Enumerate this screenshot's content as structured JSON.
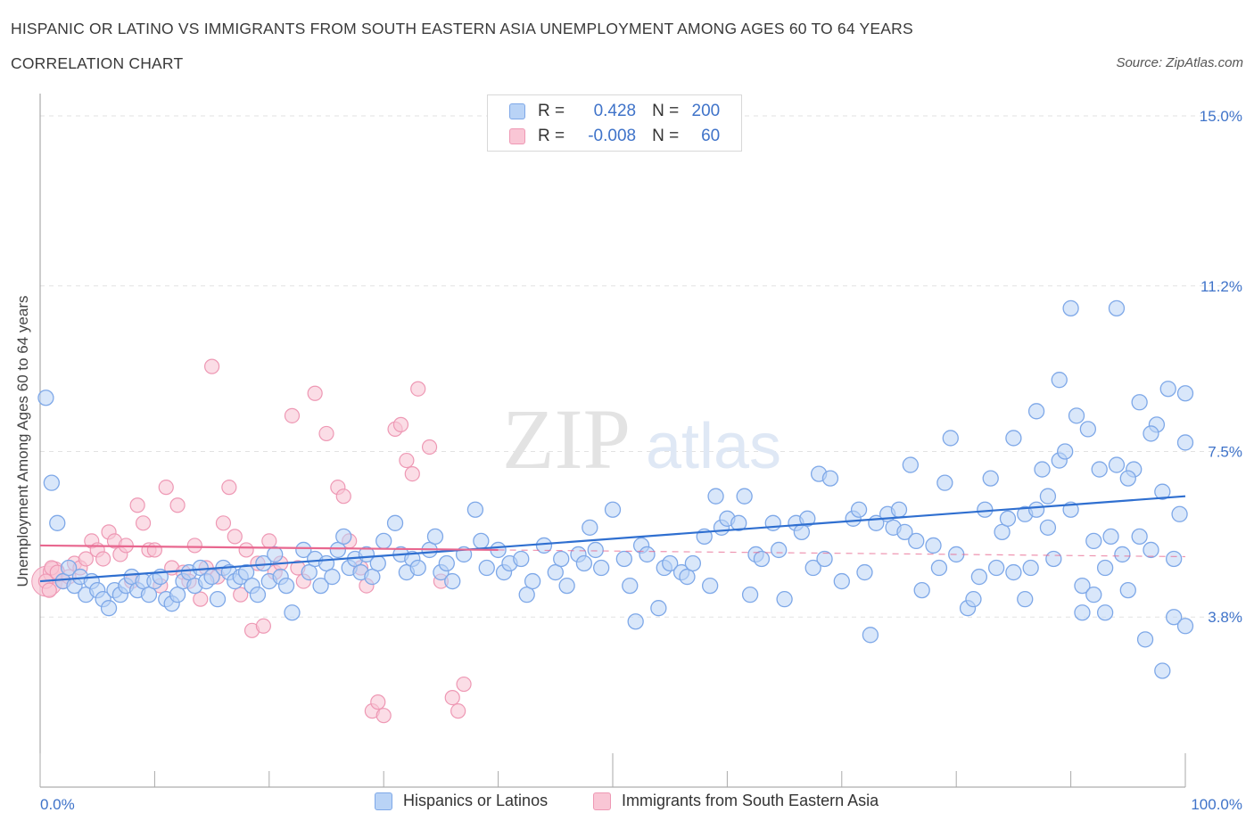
{
  "title": "HISPANIC OR LATINO VS IMMIGRANTS FROM SOUTH EASTERN ASIA UNEMPLOYMENT AMONG AGES 60 TO 64 YEARS",
  "subtitle": "CORRELATION CHART",
  "source": "Source: ZipAtlas.com",
  "legend": {
    "rows": [
      {
        "r_label": "R =",
        "r_value": "0.428",
        "n_label": "N =",
        "n_value": "200"
      },
      {
        "r_label": "R =",
        "r_value": "-0.008",
        "n_label": "N =",
        "n_value": "60"
      }
    ]
  },
  "bottom_legend": {
    "series1": "Hispanics or Latinos",
    "series2": "Immigrants from South Eastern Asia"
  },
  "colors": {
    "blue_fill": "#b9d3f6",
    "blue_stroke": "#7ea8e8",
    "blue_line": "#2f6fd0",
    "pink_fill": "#f9c6d5",
    "pink_stroke": "#ee98b4",
    "pink_line": "#e8678f",
    "axis_label": "#3f73c9"
  },
  "chart_data": {
    "type": "scatter",
    "title": "HISPANIC OR LATINO VS IMMIGRANTS FROM SOUTH EASTERN ASIA UNEMPLOYMENT AMONG AGES 60 TO 64 YEARS",
    "xlabel": "",
    "ylabel": "Unemployment Among Ages 60 to 64 years",
    "xlim": [
      0,
      100
    ],
    "ylim": [
      0,
      15.0
    ],
    "x_tick_labels": [
      "0.0%",
      "100.0%"
    ],
    "y_tick_values": [
      3.8,
      7.5,
      11.2,
      15.0
    ],
    "y_tick_labels": [
      "3.8%",
      "7.5%",
      "11.2%",
      "15.0%"
    ],
    "grid": true,
    "legend_position": "top-center",
    "series": [
      {
        "name": "Hispanics or Latinos",
        "R": 0.428,
        "N": 200,
        "trend": {
          "x": [
            0,
            100
          ],
          "y": [
            4.6,
            6.5
          ]
        },
        "points": [
          [
            0.5,
            8.7
          ],
          [
            1,
            6.8
          ],
          [
            1.5,
            5.9
          ],
          [
            2,
            4.6
          ],
          [
            2.5,
            4.9
          ],
          [
            3,
            4.5
          ],
          [
            3.5,
            4.7
          ],
          [
            4,
            4.3
          ],
          [
            4.5,
            4.6
          ],
          [
            5,
            4.4
          ],
          [
            5.5,
            4.2
          ],
          [
            6,
            4.0
          ],
          [
            6.5,
            4.4
          ],
          [
            7,
            4.3
          ],
          [
            7.5,
            4.5
          ],
          [
            8,
            4.7
          ],
          [
            8.5,
            4.4
          ],
          [
            9,
            4.6
          ],
          [
            9.5,
            4.3
          ],
          [
            10,
            4.6
          ],
          [
            10.5,
            4.7
          ],
          [
            11,
            4.2
          ],
          [
            11.5,
            4.1
          ],
          [
            12,
            4.3
          ],
          [
            12.5,
            4.6
          ],
          [
            13,
            4.8
          ],
          [
            13.5,
            4.5
          ],
          [
            14,
            4.9
          ],
          [
            14.5,
            4.6
          ],
          [
            15,
            4.7
          ],
          [
            15.5,
            4.2
          ],
          [
            16,
            4.9
          ],
          [
            16.5,
            4.8
          ],
          [
            17,
            4.6
          ],
          [
            17.5,
            4.7
          ],
          [
            18,
            4.8
          ],
          [
            18.5,
            4.5
          ],
          [
            19,
            4.3
          ],
          [
            19.5,
            5.0
          ],
          [
            20,
            4.6
          ],
          [
            20.5,
            5.2
          ],
          [
            21,
            4.7
          ],
          [
            21.5,
            4.5
          ],
          [
            22,
            3.9
          ],
          [
            23,
            5.3
          ],
          [
            23.5,
            4.8
          ],
          [
            24,
            5.1
          ],
          [
            24.5,
            4.5
          ],
          [
            25,
            5.0
          ],
          [
            25.5,
            4.7
          ],
          [
            26,
            5.3
          ],
          [
            26.5,
            5.6
          ],
          [
            27,
            4.9
          ],
          [
            27.5,
            5.1
          ],
          [
            28,
            4.8
          ],
          [
            28.5,
            5.2
          ],
          [
            29,
            4.7
          ],
          [
            29.5,
            5.0
          ],
          [
            30,
            5.5
          ],
          [
            31,
            5.9
          ],
          [
            31.5,
            5.2
          ],
          [
            32,
            4.8
          ],
          [
            32.5,
            5.1
          ],
          [
            33,
            4.9
          ],
          [
            34,
            5.3
          ],
          [
            34.5,
            5.6
          ],
          [
            35,
            4.8
          ],
          [
            35.5,
            5.0
          ],
          [
            36,
            4.6
          ],
          [
            37,
            5.2
          ],
          [
            38,
            6.2
          ],
          [
            38.5,
            5.5
          ],
          [
            39,
            4.9
          ],
          [
            40,
            5.3
          ],
          [
            40.5,
            4.8
          ],
          [
            41,
            5.0
          ],
          [
            42,
            5.1
          ],
          [
            42.5,
            4.3
          ],
          [
            43,
            4.6
          ],
          [
            44,
            5.4
          ],
          [
            45,
            4.8
          ],
          [
            45.5,
            5.1
          ],
          [
            46,
            4.5
          ],
          [
            47,
            5.2
          ],
          [
            47.5,
            5.0
          ],
          [
            48,
            5.8
          ],
          [
            48.5,
            5.3
          ],
          [
            49,
            4.9
          ],
          [
            50,
            6.2
          ],
          [
            51,
            5.1
          ],
          [
            51.5,
            4.5
          ],
          [
            52,
            3.7
          ],
          [
            52.5,
            5.4
          ],
          [
            53,
            5.2
          ],
          [
            54,
            4.0
          ],
          [
            54.5,
            4.9
          ],
          [
            55,
            5.0
          ],
          [
            56,
            4.8
          ],
          [
            56.5,
            4.7
          ],
          [
            57,
            5.0
          ],
          [
            58,
            5.6
          ],
          [
            58.5,
            4.5
          ],
          [
            59,
            6.5
          ],
          [
            59.5,
            5.8
          ],
          [
            60,
            6.0
          ],
          [
            61,
            5.9
          ],
          [
            61.5,
            6.5
          ],
          [
            62,
            4.3
          ],
          [
            62.5,
            5.2
          ],
          [
            63,
            5.1
          ],
          [
            64,
            5.9
          ],
          [
            64.5,
            5.3
          ],
          [
            65,
            4.2
          ],
          [
            66,
            5.9
          ],
          [
            66.5,
            5.7
          ],
          [
            67,
            6.0
          ],
          [
            67.5,
            4.9
          ],
          [
            68,
            7.0
          ],
          [
            68.5,
            5.1
          ],
          [
            69,
            6.9
          ],
          [
            70,
            4.6
          ],
          [
            71,
            6.0
          ],
          [
            71.5,
            6.2
          ],
          [
            72,
            4.8
          ],
          [
            72.5,
            3.4
          ],
          [
            73,
            5.9
          ],
          [
            74,
            6.1
          ],
          [
            74.5,
            5.8
          ],
          [
            75,
            6.2
          ],
          [
            75.5,
            5.7
          ],
          [
            76,
            7.2
          ],
          [
            76.5,
            5.5
          ],
          [
            77,
            4.4
          ],
          [
            78,
            5.4
          ],
          [
            78.5,
            4.9
          ],
          [
            79,
            6.8
          ],
          [
            79.5,
            7.8
          ],
          [
            80,
            5.2
          ],
          [
            81,
            4.0
          ],
          [
            81.5,
            4.2
          ],
          [
            82,
            4.7
          ],
          [
            82.5,
            6.2
          ],
          [
            83,
            6.9
          ],
          [
            83.5,
            4.9
          ],
          [
            84,
            5.7
          ],
          [
            84.5,
            6.0
          ],
          [
            85,
            4.8
          ],
          [
            86,
            6.1
          ],
          [
            86.5,
            4.9
          ],
          [
            87,
            6.2
          ],
          [
            87.5,
            7.1
          ],
          [
            88,
            6.5
          ],
          [
            88.5,
            5.1
          ],
          [
            89,
            7.3
          ],
          [
            89.5,
            7.5
          ],
          [
            90,
            6.2
          ],
          [
            90.5,
            8.3
          ],
          [
            91,
            4.5
          ],
          [
            91.5,
            8.0
          ],
          [
            92,
            5.5
          ],
          [
            92.5,
            7.1
          ],
          [
            93,
            4.9
          ],
          [
            93.5,
            5.6
          ],
          [
            94,
            10.7
          ],
          [
            94.5,
            5.2
          ],
          [
            95,
            4.4
          ],
          [
            95.5,
            7.1
          ],
          [
            96,
            8.6
          ],
          [
            96.5,
            3.3
          ],
          [
            97,
            5.3
          ],
          [
            97.5,
            8.1
          ],
          [
            98,
            2.6
          ],
          [
            98.5,
            8.9
          ],
          [
            99,
            3.8
          ],
          [
            99.5,
            6.1
          ],
          [
            100,
            8.8
          ],
          [
            100,
            3.6
          ],
          [
            100,
            7.7
          ],
          [
            99,
            5.1
          ],
          [
            98,
            6.6
          ],
          [
            97,
            7.9
          ],
          [
            96,
            5.6
          ],
          [
            95,
            6.9
          ],
          [
            94,
            7.2
          ],
          [
            93,
            3.9
          ],
          [
            92,
            4.3
          ],
          [
            91,
            3.9
          ],
          [
            90,
            10.7
          ],
          [
            89,
            9.1
          ],
          [
            88,
            5.8
          ],
          [
            87,
            8.4
          ],
          [
            86,
            4.2
          ],
          [
            85,
            7.8
          ]
        ]
      },
      {
        "name": "Immigrants from South Eastern Asia",
        "R": -0.008,
        "N": 60,
        "trend": {
          "x": [
            0,
            40
          ],
          "y": [
            5.4,
            5.3
          ],
          "dashed_extension_to": 100
        },
        "points": [
          [
            0.5,
            4.6
          ],
          [
            0.8,
            4.4
          ],
          [
            1,
            4.9
          ],
          [
            1.5,
            4.8
          ],
          [
            2,
            4.6
          ],
          [
            2.5,
            4.7
          ],
          [
            3,
            5.0
          ],
          [
            3.5,
            4.9
          ],
          [
            4,
            5.1
          ],
          [
            4.5,
            5.5
          ],
          [
            5,
            5.3
          ],
          [
            5.5,
            5.1
          ],
          [
            6,
            5.7
          ],
          [
            6.5,
            5.5
          ],
          [
            7,
            5.2
          ],
          [
            7.5,
            5.4
          ],
          [
            8,
            4.6
          ],
          [
            8.5,
            6.3
          ],
          [
            9,
            5.9
          ],
          [
            9.5,
            5.3
          ],
          [
            10,
            5.3
          ],
          [
            10.5,
            4.5
          ],
          [
            11,
            6.7
          ],
          [
            11.5,
            4.9
          ],
          [
            12,
            6.3
          ],
          [
            12.5,
            4.8
          ],
          [
            13,
            4.6
          ],
          [
            13.5,
            5.4
          ],
          [
            14,
            4.2
          ],
          [
            14.5,
            4.9
          ],
          [
            15,
            9.4
          ],
          [
            15.5,
            4.7
          ],
          [
            16,
            5.9
          ],
          [
            16.5,
            6.7
          ],
          [
            17,
            5.6
          ],
          [
            17.5,
            4.3
          ],
          [
            18,
            5.3
          ],
          [
            18.5,
            3.5
          ],
          [
            19,
            5.0
          ],
          [
            19.5,
            3.6
          ],
          [
            20,
            5.5
          ],
          [
            20.5,
            4.8
          ],
          [
            21,
            5.0
          ],
          [
            22,
            8.3
          ],
          [
            22.5,
            4.9
          ],
          [
            23,
            4.6
          ],
          [
            24,
            8.8
          ],
          [
            25,
            7.9
          ],
          [
            26,
            6.7
          ],
          [
            26.5,
            6.5
          ],
          [
            27,
            5.5
          ],
          [
            28,
            4.9
          ],
          [
            28.5,
            4.5
          ],
          [
            29,
            1.7
          ],
          [
            29.5,
            1.9
          ],
          [
            30,
            1.6
          ],
          [
            31,
            8.0
          ],
          [
            31.5,
            8.1
          ],
          [
            32,
            7.3
          ],
          [
            32.5,
            7.0
          ],
          [
            33,
            8.9
          ],
          [
            34,
            7.6
          ],
          [
            35,
            4.6
          ],
          [
            36,
            2.0
          ],
          [
            36.5,
            1.7
          ],
          [
            37,
            2.3
          ]
        ]
      }
    ]
  }
}
